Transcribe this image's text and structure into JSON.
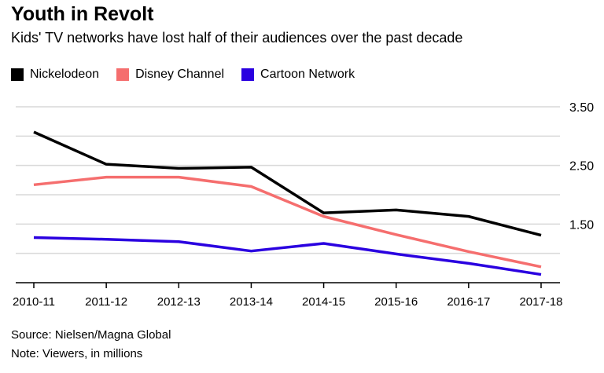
{
  "chart_data": {
    "type": "line",
    "title": "Youth in Revolt",
    "subtitle": "Kids' TV networks have lost half of their audiences over the past decade",
    "categories": [
      "2010-11",
      "2011-12",
      "2012-13",
      "2013-14",
      "2014-15",
      "2015-16",
      "2016-17",
      "2017-18"
    ],
    "series": [
      {
        "name": "Nickelodeon",
        "color": "#000000",
        "values": [
          3.07,
          2.52,
          2.45,
          2.47,
          1.69,
          1.74,
          1.63,
          1.31
        ]
      },
      {
        "name": "Disney Channel",
        "color": "#f56e6e",
        "values": [
          2.17,
          2.3,
          2.3,
          2.14,
          1.63,
          1.32,
          1.03,
          0.77
        ]
      },
      {
        "name": "Cartoon Network",
        "color": "#2a00e0",
        "values": [
          1.27,
          1.24,
          1.2,
          1.04,
          1.17,
          0.99,
          0.83,
          0.64
        ]
      }
    ],
    "ylim": [
      0.5,
      3.5
    ],
    "yticks": [
      "3.50",
      "2.50",
      "1.50"
    ],
    "y_axis_side": "right",
    "grid": true,
    "legend": "top-left",
    "source": "Source: Nielsen/Magna Global",
    "note": "Note: Viewers, in millions"
  }
}
